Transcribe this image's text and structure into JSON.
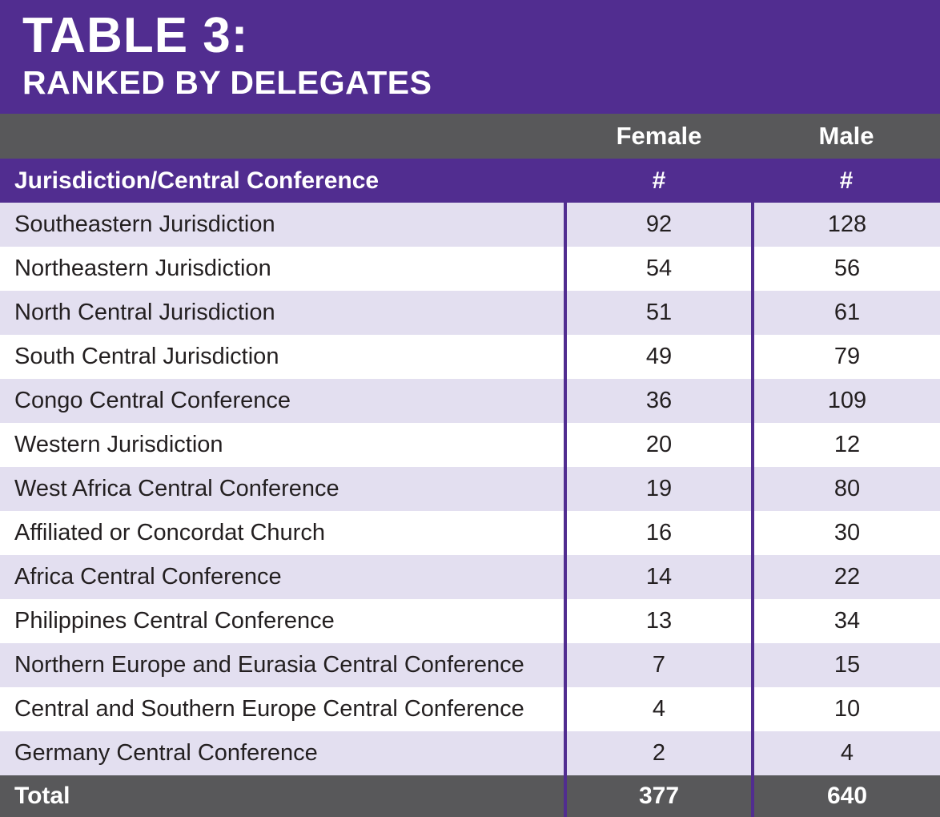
{
  "title": {
    "line1": "TABLE 3:",
    "line2": "RANKED BY DELEGATES"
  },
  "table": {
    "group_headers": {
      "female": "Female",
      "male": "Male"
    },
    "subheader": {
      "label": "Jurisdiction/Central Conference",
      "female": "#",
      "male": "#"
    },
    "rows": [
      {
        "label": "Southeastern Jurisdiction",
        "female": 92,
        "male": 128
      },
      {
        "label": "Northeastern Jurisdiction",
        "female": 54,
        "male": 56
      },
      {
        "label": "North Central Jurisdiction",
        "female": 51,
        "male": 61
      },
      {
        "label": "South Central Jurisdiction",
        "female": 49,
        "male": 79
      },
      {
        "label": "Congo Central Conference",
        "female": 36,
        "male": 109
      },
      {
        "label": "Western Jurisdiction",
        "female": 20,
        "male": 12
      },
      {
        "label": "West Africa Central Conference",
        "female": 19,
        "male": 80
      },
      {
        "label": "Affiliated or Concordat Church",
        "female": 16,
        "male": 30
      },
      {
        "label": "Africa Central Conference",
        "female": 14,
        "male": 22
      },
      {
        "label": "Philippines Central Conference",
        "female": 13,
        "male": 34
      },
      {
        "label": "Northern Europe and Eurasia Central Conference",
        "female": 7,
        "male": 15
      },
      {
        "label": "Central and Southern Europe Central Conference",
        "female": 4,
        "male": 10
      },
      {
        "label": "Germany Central Conference",
        "female": 2,
        "male": 4
      }
    ],
    "total": {
      "label": "Total",
      "female": 377,
      "male": 640
    }
  },
  "colors": {
    "purple": "#512D90",
    "dark_gray": "#58585A",
    "row_stripe": "#E3DFF0",
    "row_alt": "#FFFFFF",
    "text_dark": "#231F20",
    "text_light": "#FFFFFF"
  },
  "chart_data": {
    "type": "table",
    "title": "TABLE 3: RANKED BY DELEGATES",
    "columns": [
      "Jurisdiction/Central Conference",
      "Female #",
      "Male #"
    ],
    "rows": [
      [
        "Southeastern Jurisdiction",
        92,
        128
      ],
      [
        "Northeastern Jurisdiction",
        54,
        56
      ],
      [
        "North Central Jurisdiction",
        51,
        61
      ],
      [
        "South Central Jurisdiction",
        49,
        79
      ],
      [
        "Congo Central Conference",
        36,
        109
      ],
      [
        "Western Jurisdiction",
        20,
        12
      ],
      [
        "West Africa Central Conference",
        19,
        80
      ],
      [
        "Affiliated or Concordat Church",
        16,
        30
      ],
      [
        "Africa Central Conference",
        14,
        22
      ],
      [
        "Philippines Central Conference",
        13,
        34
      ],
      [
        "Northern Europe and Eurasia Central Conference",
        7,
        15
      ],
      [
        "Central and Southern Europe Central Conference",
        4,
        10
      ],
      [
        "Germany Central Conference",
        2,
        4
      ]
    ],
    "total_row": [
      "Total",
      377,
      640
    ],
    "sort": "descending by female delegates"
  }
}
